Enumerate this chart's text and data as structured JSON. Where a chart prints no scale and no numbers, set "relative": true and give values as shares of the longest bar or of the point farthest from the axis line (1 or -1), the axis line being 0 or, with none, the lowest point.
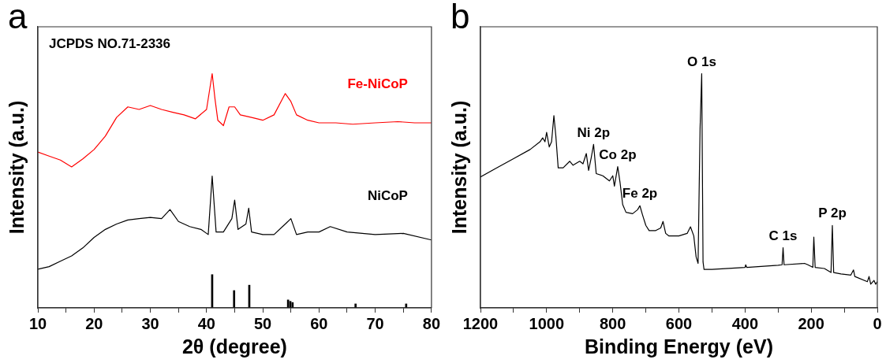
{
  "chart_data": [
    {
      "type": "line",
      "title": "a",
      "xlabel": "2θ (degree)",
      "ylabel": "Intensity (a.u.)",
      "relative": true,
      "marker": "none",
      "annotations": [
        "JCPDS NO.71-2336"
      ],
      "xlim": [
        10,
        80
      ],
      "xticks": [
        10,
        {
          "value": 15,
          "label": null
        },
        20,
        {
          "value": 25,
          "label": null
        },
        30,
        {
          "value": 35,
          "label": null
        },
        40,
        {
          "value": 45,
          "label": null
        },
        50,
        {
          "value": 55,
          "label": null
        },
        60,
        {
          "value": 65,
          "label": null
        },
        70,
        {
          "value": 75,
          "label": null
        },
        80
      ],
      "series": [
        {
          "name": "Fe-NiCoP",
          "color": "#ff0000",
          "x": [
            10,
            12,
            14,
            16,
            18,
            20,
            22,
            24,
            26,
            28,
            30,
            32,
            34,
            36,
            38,
            40,
            41,
            41.5,
            42,
            43,
            44,
            45,
            46,
            48,
            50,
            52,
            54,
            55,
            56,
            58,
            60,
            63,
            66,
            70,
            74,
            77,
            80
          ],
          "values": [
            0.665,
            0.648,
            0.631,
            0.602,
            0.636,
            0.676,
            0.733,
            0.813,
            0.858,
            0.847,
            0.864,
            0.847,
            0.835,
            0.824,
            0.807,
            0.847,
            1.0,
            0.892,
            0.801,
            0.778,
            0.858,
            0.858,
            0.824,
            0.813,
            0.801,
            0.824,
            0.915,
            0.881,
            0.824,
            0.801,
            0.79,
            0.79,
            0.784,
            0.79,
            0.795,
            0.79,
            0.79
          ]
        },
        {
          "name": "NiCoP",
          "color": "#000000",
          "x": [
            10,
            12,
            14,
            16,
            18,
            20,
            22,
            24,
            26,
            28,
            30,
            32,
            33.5,
            35,
            37,
            39,
            40.3,
            41,
            41.7,
            43,
            44.5,
            45,
            45.6,
            47,
            47.5,
            48,
            50,
            52,
            54,
            55,
            56,
            58,
            60,
            62,
            65,
            70,
            75,
            80
          ],
          "values": [
            0.165,
            0.176,
            0.199,
            0.222,
            0.256,
            0.301,
            0.335,
            0.358,
            0.375,
            0.381,
            0.386,
            0.381,
            0.42,
            0.369,
            0.347,
            0.335,
            0.313,
            0.563,
            0.324,
            0.324,
            0.381,
            0.46,
            0.335,
            0.358,
            0.426,
            0.324,
            0.313,
            0.313,
            0.358,
            0.381,
            0.313,
            0.324,
            0.324,
            0.347,
            0.324,
            0.313,
            0.318,
            0.29
          ]
        },
        {
          "type": "bar",
          "color": "#000000",
          "x": [
            41,
            44.9,
            47.6,
            54.5,
            54.9,
            55.3,
            66.5,
            75.5
          ],
          "values": [
            0.142,
            0.074,
            0.097,
            0.034,
            0.028,
            0.023,
            0.017,
            0.017
          ]
        }
      ]
    },
    {
      "type": "line",
      "title": "b",
      "xlabel": "Binding Energy (eV)",
      "ylabel": "Intensity (a.u.)",
      "relative": true,
      "marker": "none",
      "annotations": [
        {
          "text": "O 1s",
          "x": 531,
          "y": 1.0
        },
        {
          "text": "Ni 2p",
          "x": 858,
          "y": 0.698
        },
        {
          "text": "Co 2p",
          "x": 785,
          "y": 0.603
        },
        {
          "text": "Fe 2p",
          "x": 718,
          "y": 0.436
        },
        {
          "text": "C 1s",
          "x": 285,
          "y": 0.257
        },
        {
          "text": "P 2p",
          "x": 136,
          "y": 0.352
        }
      ],
      "xlim": [
        1200,
        0
      ],
      "xticks": [
        1200,
        {
          "value": 1100,
          "label": null
        },
        1000,
        {
          "value": 900,
          "label": null
        },
        800,
        {
          "value": 700,
          "label": null
        },
        600,
        {
          "value": 500,
          "label": null
        },
        400,
        {
          "value": 300,
          "label": null
        },
        200,
        {
          "value": 100,
          "label": null
        },
        0
      ],
      "series": [
        {
          "color": "#000000",
          "x": [
            1200,
            1150,
            1100,
            1050,
            1020,
            1012,
            1005,
            1000,
            992,
            985,
            978,
            972,
            965,
            950,
            930,
            920,
            900,
            890,
            880,
            873,
            865,
            858,
            850,
            830,
            810,
            800,
            795,
            785,
            778,
            770,
            760,
            740,
            725,
            718,
            710,
            700,
            690,
            670,
            655,
            648,
            640,
            630,
            600,
            575,
            565,
            555,
            548,
            542,
            536,
            531,
            527,
            524,
            500,
            400,
            398,
            395,
            300,
            288,
            285,
            282,
            220,
            210,
            195,
            192,
            188,
            160,
            140,
            136,
            132,
            110,
            80,
            72,
            68,
            30,
            25,
            20,
            10,
            5,
            0
          ],
          "values": [
            0.559,
            0.598,
            0.637,
            0.676,
            0.709,
            0.726,
            0.709,
            0.749,
            0.687,
            0.709,
            0.821,
            0.732,
            0.598,
            0.598,
            0.626,
            0.609,
            0.626,
            0.615,
            0.659,
            0.587,
            0.642,
            0.698,
            0.573,
            0.564,
            0.542,
            0.564,
            0.52,
            0.603,
            0.536,
            0.441,
            0.408,
            0.402,
            0.419,
            0.436,
            0.397,
            0.352,
            0.33,
            0.33,
            0.341,
            0.369,
            0.318,
            0.307,
            0.307,
            0.318,
            0.346,
            0.307,
            0.218,
            0.19,
            0.765,
            1.0,
            0.196,
            0.164,
            0.164,
            0.173,
            0.184,
            0.173,
            0.182,
            0.184,
            0.257,
            0.184,
            0.19,
            0.184,
            0.173,
            0.302,
            0.173,
            0.168,
            0.151,
            0.352,
            0.151,
            0.145,
            0.14,
            0.162,
            0.134,
            0.112,
            0.134,
            0.101,
            0.117,
            0.101,
            0.112
          ]
        }
      ]
    }
  ]
}
